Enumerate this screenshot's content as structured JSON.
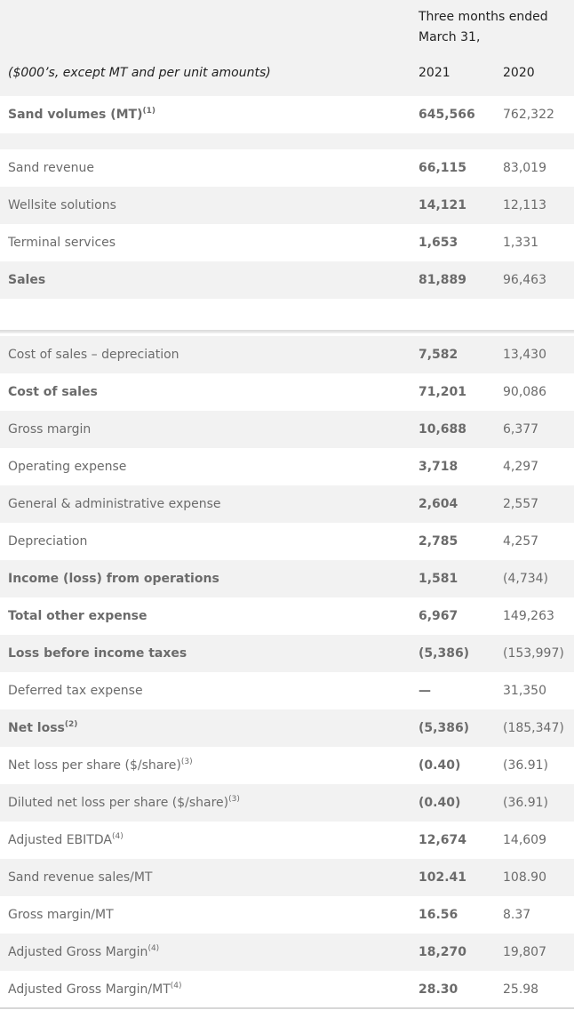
{
  "header": {
    "period_line1": "Three months ended",
    "period_line2": "March 31,",
    "units_label": "($000’s, except MT and per unit amounts)",
    "year1": "2021",
    "year2": "2020"
  },
  "rows": [
    {
      "label": "Sand volumes (MT)",
      "sup": "(1)",
      "v2021": "645,566",
      "v2020": "762,322"
    },
    {
      "label": "Sand revenue",
      "sup": "",
      "v2021": "66,115",
      "v2020": "83,019"
    },
    {
      "label": "Wellsite solutions",
      "sup": "",
      "v2021": "14,121",
      "v2020": "12,113"
    },
    {
      "label": "Terminal services",
      "sup": "",
      "v2021": "1,653",
      "v2020": "1,331"
    },
    {
      "label": "Sales",
      "sup": "",
      "v2021": "81,889",
      "v2020": "96,463"
    },
    {
      "label": "Cost of sales – depreciation",
      "sup": "",
      "v2021": "7,582",
      "v2020": "13,430"
    },
    {
      "label": "Cost of sales",
      "sup": "",
      "v2021": "71,201",
      "v2020": "90,086"
    },
    {
      "label": "Gross margin",
      "sup": "",
      "v2021": "10,688",
      "v2020": "6,377"
    },
    {
      "label": "Operating expense",
      "sup": "",
      "v2021": "3,718",
      "v2020": "4,297"
    },
    {
      "label": "General & administrative expense",
      "sup": "",
      "v2021": "2,604",
      "v2020": "2,557"
    },
    {
      "label": "Depreciation",
      "sup": "",
      "v2021": "2,785",
      "v2020": "4,257"
    },
    {
      "label": "Income (loss) from operations",
      "sup": "",
      "v2021": "1,581",
      "v2020": "(4,734)"
    },
    {
      "label": "Total other expense",
      "sup": "",
      "v2021": "6,967",
      "v2020": "149,263"
    },
    {
      "label": "Loss before income taxes",
      "sup": "",
      "v2021": "(5,386)",
      "v2020": "(153,997)"
    },
    {
      "label": "Deferred tax expense",
      "sup": "",
      "v2021": "—",
      "v2020": "31,350"
    },
    {
      "label": "Net loss",
      "sup": "(2)",
      "v2021": "(5,386)",
      "v2020": "(185,347)"
    },
    {
      "label": "Net loss per share ($/share)",
      "sup": "(3)",
      "v2021": "(0.40)",
      "v2020": "(36.91)"
    },
    {
      "label": "Diluted net loss per share ($/share)",
      "sup": "(3)",
      "v2021": "(0.40)",
      "v2020": "(36.91)"
    },
    {
      "label": "Adjusted EBITDA",
      "sup": "(4)",
      "v2021": "12,674",
      "v2020": "14,609"
    },
    {
      "label": "Sand revenue sales/MT",
      "sup": "",
      "v2021": "102.41",
      "v2020": "108.90"
    },
    {
      "label": "Gross margin/MT",
      "sup": "",
      "v2021": "16.56",
      "v2020": "8.37"
    },
    {
      "label": "Adjusted Gross Margin",
      "sup": "(4)",
      "v2021": "18,270",
      "v2020": "19,807"
    },
    {
      "label": "Adjusted Gross Margin/MT",
      "sup": "(4)",
      "v2021": "28.30",
      "v2020": "25.98"
    }
  ]
}
